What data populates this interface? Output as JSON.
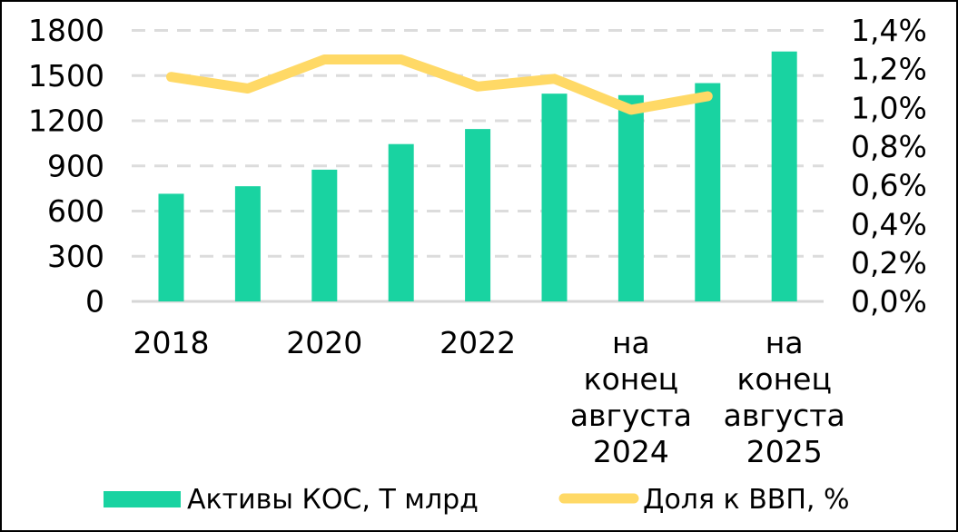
{
  "chart_data": {
    "type": "bar+line combo",
    "title": "",
    "categories": [
      "2018",
      "",
      "2020",
      "",
      "2022",
      "",
      "на конец августа 2024",
      "",
      "на конец августа 2025"
    ],
    "series": [
      {
        "name": "Активы КОС, Т млрд",
        "type": "bar",
        "axis": "left",
        "values": [
          715,
          765,
          875,
          1045,
          1145,
          1380,
          1370,
          1450,
          1660
        ]
      },
      {
        "name": "Доля к ВВП, %",
        "type": "line",
        "axis": "right",
        "values": [
          1.16,
          1.1,
          1.25,
          1.25,
          1.11,
          1.15,
          0.99,
          1.06,
          null
        ]
      }
    ],
    "left_axis": {
      "min": 0,
      "max": 1800,
      "step": 300,
      "tick_labels": [
        "0",
        "300",
        "600",
        "900",
        "1200",
        "1500",
        "1800"
      ]
    },
    "right_axis": {
      "min": 0,
      "max": 1.4,
      "step": 0.2,
      "tick_labels": [
        "0,0%",
        "0,2%",
        "0,4%",
        "0,6%",
        "0,8%",
        "1,0%",
        "1,2%",
        "1,4%"
      ]
    },
    "grid": "horizontal dashed",
    "legend_position": "bottom"
  },
  "colors": {
    "bar": "#19d3a1",
    "line": "#ffd966",
    "gridline": "#dcdcdc",
    "axis_line": "#d6d6d6",
    "text": "#000000",
    "background": "#ffffff",
    "border": "#000000"
  }
}
